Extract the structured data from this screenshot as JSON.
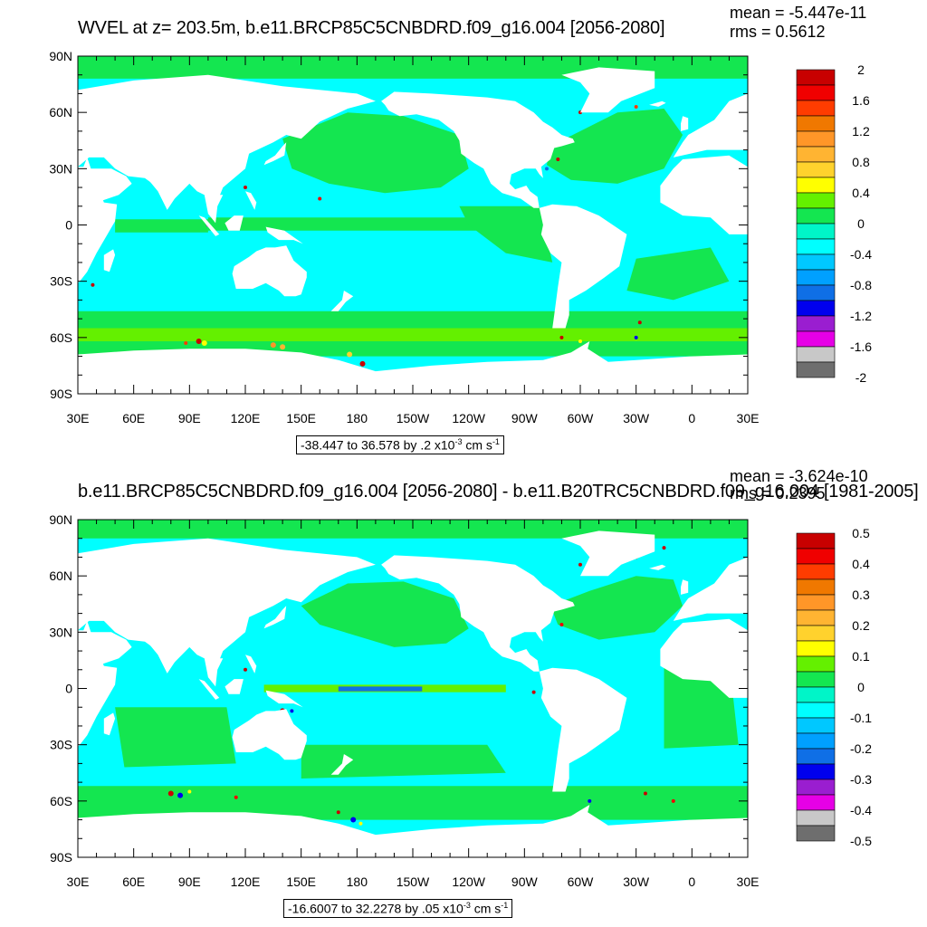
{
  "palette": [
    "#6e6e6e",
    "#c8c8c8",
    "#e600e6",
    "#9a1ed0",
    "#0000ee",
    "#0f6fe6",
    "#00a0ff",
    "#00c8ff",
    "#00ffff",
    "#00f5c8",
    "#14e650",
    "#64f000",
    "#ffff00",
    "#ffd22d",
    "#ffb432",
    "#ff9628",
    "#f07800",
    "#ff3c00",
    "#f00000",
    "#c80000"
  ],
  "land_color": "#ffffff",
  "axis": {
    "lat_labels": [
      "90N",
      "60N",
      "30N",
      "0",
      "30S",
      "60S",
      "90S"
    ],
    "lon_labels": [
      "30E",
      "60E",
      "90E",
      "120E",
      "150E",
      "180",
      "150W",
      "120W",
      "90W",
      "60W",
      "30W",
      "0",
      "30E"
    ]
  },
  "panels": [
    {
      "title": "WVEL at z= 203.5m, b.e11.BRCP85C5CNBDRD.f09_g16.004 [2056-2080]",
      "mean": "mean = -5.447e-11",
      "rms": "rms = 0.5612",
      "range_text": "-38.447 to 36.578 by .2 x10",
      "range_exp": "-3",
      "range_unit": " cm s",
      "range_unit_exp": "-1",
      "colorbar_labels": [
        "2",
        "1.6",
        "1.2",
        "0.8",
        "0.4",
        "0",
        "-0.4",
        "-0.8",
        "-1.2",
        "-1.6",
        "-2"
      ]
    },
    {
      "title": "b.e11.BRCP85C5CNBDRD.f09_g16.004 [2056-2080] - b.e11.B20TRC5CNBDRD.f09_g16.004 [1981-2005]",
      "mean": "mean = -3.624e-10",
      "rms": "rms = 0.2395",
      "range_text": "-16.6007 to 32.2278 by .05 x10",
      "range_exp": "-3",
      "range_unit": " cm s",
      "range_unit_exp": "-1",
      "colorbar_labels": [
        "0.5",
        "0.4",
        "0.3",
        "0.2",
        "0.1",
        "0",
        "-0.1",
        "-0.2",
        "-0.3",
        "-0.4",
        "-0.5"
      ]
    }
  ]
}
